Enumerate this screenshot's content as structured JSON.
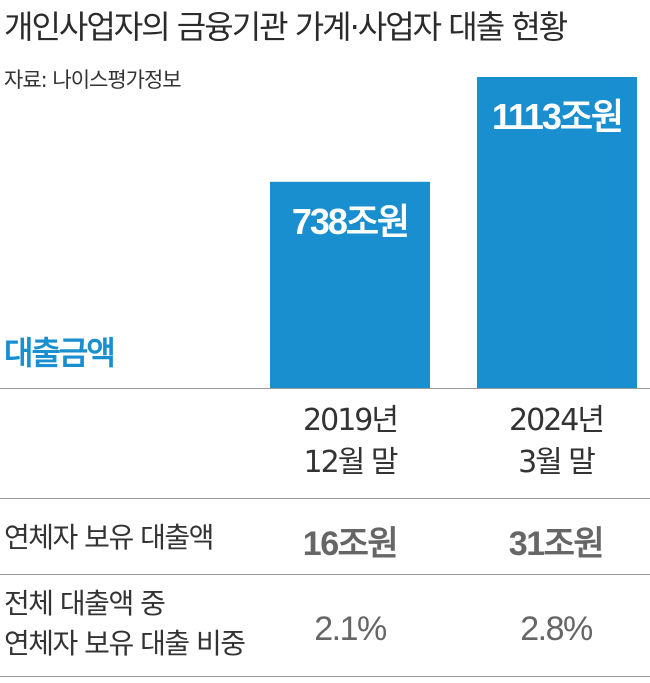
{
  "title": "개인사업자의 금융기관 가계·사업자 대출 현황",
  "source": "자료: 나이스평가정보",
  "chart_data": {
    "type": "bar",
    "series_label": "대출금액",
    "categories": [
      "2019년 12월 말",
      "2024년 3월 말"
    ],
    "values": [
      738,
      1113
    ],
    "unit": "조원",
    "bar_labels": [
      "738조원",
      "1113조원"
    ],
    "color": "#1a8fd0",
    "label_color": "#1a8fd0"
  },
  "periods": [
    {
      "line1": "2019년",
      "line2": "12월 말"
    },
    {
      "line1": "2024년",
      "line2": "3월 말"
    }
  ],
  "rows": [
    {
      "label": "연체자 보유 대출액",
      "values": [
        "16조원",
        "31조원"
      ]
    },
    {
      "label_line1": "전체 대출액 중",
      "label_line2": "연체자 보유 대출 비중",
      "values": [
        "2.1%",
        "2.8%"
      ]
    }
  ]
}
